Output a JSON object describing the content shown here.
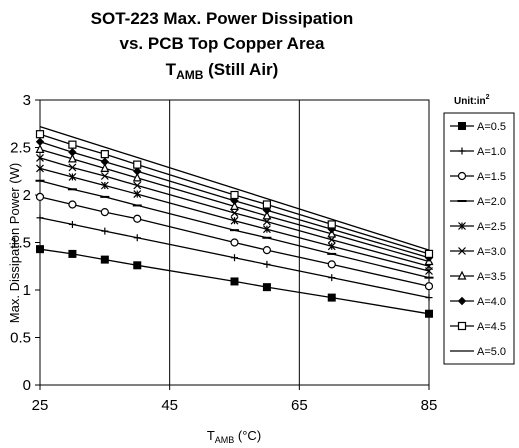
{
  "chart_data": {
    "type": "line",
    "title_line1": "SOT-223 Max. Power Dissipation",
    "title_line2": "vs.  PCB Top Copper Area",
    "title_line3_main": "T",
    "title_line3_sub": "AMB",
    "title_line3_rest": " (Still Air)",
    "xlabel_main": "T",
    "xlabel_sub": "AMB",
    "xlabel_rest": " (°C)",
    "ylabel": "Max. Dissipation Power (W)",
    "unit_label": "Unit:in",
    "unit_sup": "2",
    "xlim": [
      25,
      85
    ],
    "ylim": [
      0,
      3
    ],
    "xticks": [
      "25",
      "45",
      "65",
      "85"
    ],
    "yticks": [
      "0",
      "0.5",
      "1",
      "1.5",
      "2",
      "2.5",
      "3"
    ],
    "grid": "vertical",
    "legend_position": "right",
    "series": [
      {
        "name": "A=0.5",
        "marker": "square-filled",
        "x": [
          25,
          30,
          35,
          40,
          55,
          60,
          70,
          85
        ],
        "y": [
          1.43,
          1.38,
          1.32,
          1.26,
          1.09,
          1.03,
          0.92,
          0.75
        ]
      },
      {
        "name": "A=1.0",
        "marker": "plus",
        "x": [
          25,
          30,
          35,
          40,
          55,
          60,
          70,
          85
        ],
        "y": [
          1.76,
          1.69,
          1.62,
          1.55,
          1.34,
          1.27,
          1.13,
          0.92
        ]
      },
      {
        "name": "A=1.5",
        "marker": "circle-open",
        "x": [
          25,
          30,
          35,
          40,
          55,
          60,
          70,
          85
        ],
        "y": [
          1.98,
          1.9,
          1.82,
          1.75,
          1.5,
          1.42,
          1.27,
          1.04
        ]
      },
      {
        "name": "A=2.0",
        "marker": "dash",
        "x": [
          25,
          30,
          35,
          40,
          55,
          60,
          70,
          85
        ],
        "y": [
          2.15,
          2.06,
          1.98,
          1.89,
          1.63,
          1.55,
          1.38,
          1.13
        ]
      },
      {
        "name": "A=2.5",
        "marker": "asterisk",
        "x": [
          25,
          30,
          35,
          40,
          55,
          60,
          70,
          85
        ],
        "y": [
          2.28,
          2.19,
          2.1,
          2.01,
          1.73,
          1.64,
          1.46,
          1.2
        ]
      },
      {
        "name": "A=3.0",
        "marker": "x",
        "x": [
          25,
          30,
          35,
          40,
          55,
          60,
          70,
          85
        ],
        "y": [
          2.39,
          2.29,
          2.2,
          2.1,
          1.81,
          1.72,
          1.53,
          1.25
        ]
      },
      {
        "name": "A=3.5",
        "marker": "triangle-open",
        "x": [
          25,
          30,
          35,
          40,
          55,
          60,
          70,
          85
        ],
        "y": [
          2.48,
          2.38,
          2.28,
          2.18,
          1.88,
          1.78,
          1.59,
          1.3
        ]
      },
      {
        "name": "A=4.0",
        "marker": "diamond-filled",
        "x": [
          25,
          30,
          35,
          40,
          55,
          60,
          70,
          85
        ],
        "y": [
          2.56,
          2.45,
          2.35,
          2.25,
          1.94,
          1.84,
          1.64,
          1.34
        ]
      },
      {
        "name": "A=4.5",
        "marker": "square-open",
        "x": [
          25,
          30,
          35,
          40,
          55,
          60,
          70,
          85
        ],
        "y": [
          2.64,
          2.53,
          2.43,
          2.32,
          2.0,
          1.9,
          1.69,
          1.38
        ]
      },
      {
        "name": "A=5.0",
        "marker": "none",
        "x": [
          25,
          85
        ],
        "y": [
          2.72,
          1.42
        ]
      }
    ]
  }
}
